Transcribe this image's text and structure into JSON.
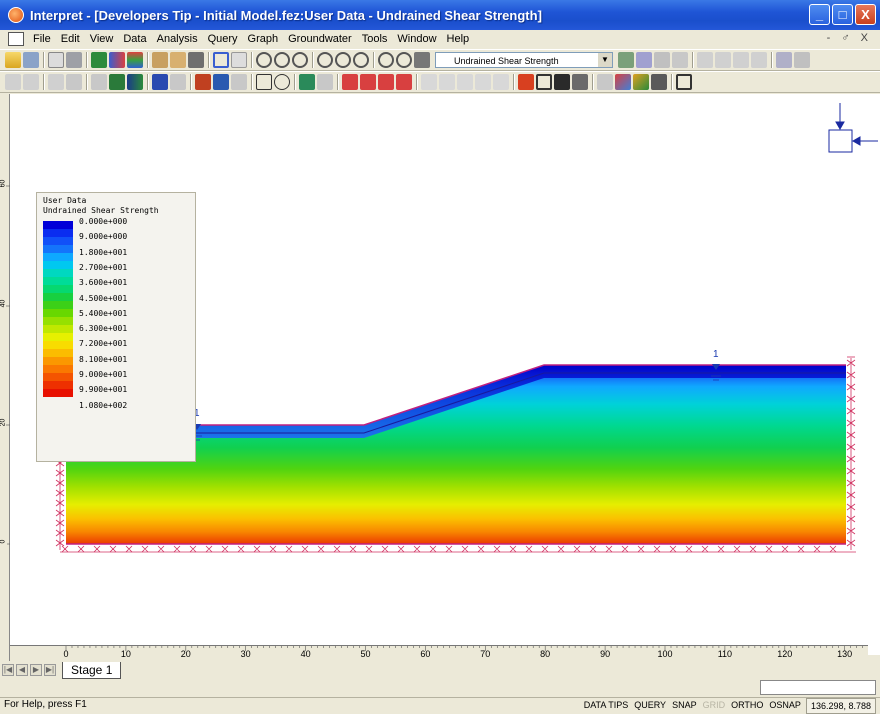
{
  "window": {
    "title": "Interpret - [Developers Tip - Initial Model.fez:User Data - Undrained Shear Strength]",
    "minimize": "_",
    "maximize": "□",
    "close": "X"
  },
  "menu": [
    "File",
    "Edit",
    "View",
    "Data",
    "Analysis",
    "Query",
    "Graph",
    "Groundwater",
    "Tools",
    "Window",
    "Help"
  ],
  "menu_right": "- ♂ X",
  "toolbar": {
    "data_selector": "Undrained Shear Strength"
  },
  "legend": {
    "title1": "User Data",
    "title2": "Undrained Shear Strength",
    "labels": [
      "0.000e+000",
      "9.000e+000",
      "1.800e+001",
      "2.700e+001",
      "3.600e+001",
      "4.500e+001",
      "5.400e+001",
      "6.300e+001",
      "7.200e+001",
      "8.100e+001",
      "9.000e+001",
      "9.900e+001",
      "1.080e+002"
    ],
    "colors": [
      "#0000d8",
      "#0a2cf0",
      "#1150f8",
      "#1474fb",
      "#0ea8ff",
      "#00c8f0",
      "#00d8c0",
      "#00dc98",
      "#06d870",
      "#18d040",
      "#3cd018",
      "#68d800",
      "#96e000",
      "#c0e800",
      "#e6f000",
      "#f8dc00",
      "#fbbc00",
      "#fb9800",
      "#fa7800",
      "#f45400",
      "#ee3000",
      "#e81000"
    ]
  },
  "model": {
    "label_left": "1",
    "label_right": "1",
    "x_ticks": [
      "0",
      "10",
      "20",
      "30",
      "40",
      "50",
      "60",
      "70",
      "80",
      "90",
      "100",
      "110",
      "120",
      "130"
    ],
    "y_ticks": [
      "0",
      "20",
      "40",
      "60"
    ]
  },
  "tabs": {
    "stage": "Stage 1"
  },
  "status": {
    "help": "For Help, press F1",
    "items": [
      "DATA TIPS",
      "QUERY",
      "SNAP",
      "GRID",
      "ORTHO",
      "OSNAP"
    ],
    "disabled": [
      "GRID"
    ],
    "coords": "136.298, 8.788"
  }
}
